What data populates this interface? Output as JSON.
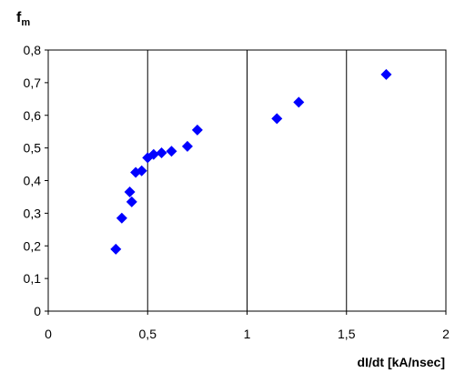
{
  "chart_data": {
    "type": "scatter",
    "title": "",
    "xlabel": "dI/dt [kA/nsec]",
    "ylabel_main": "f",
    "ylabel_sub": "m",
    "xlim": [
      0,
      2
    ],
    "ylim": [
      0,
      0.8
    ],
    "x_ticks": [
      "0",
      "0,5",
      "1",
      "1,5",
      "2"
    ],
    "y_ticks": [
      "0",
      "0,1",
      "0,2",
      "0,3",
      "0,4",
      "0,5",
      "0,6",
      "0,7",
      "0,8"
    ],
    "grid": "vertical-major",
    "marker": "diamond",
    "marker_color": "#0000FF",
    "series": [
      {
        "points": [
          [
            0.34,
            0.19
          ],
          [
            0.37,
            0.285
          ],
          [
            0.41,
            0.365
          ],
          [
            0.42,
            0.335
          ],
          [
            0.44,
            0.425
          ],
          [
            0.47,
            0.43
          ],
          [
            0.5,
            0.47
          ],
          [
            0.53,
            0.48
          ],
          [
            0.57,
            0.485
          ],
          [
            0.62,
            0.49
          ],
          [
            0.7,
            0.505
          ],
          [
            0.75,
            0.555
          ],
          [
            1.15,
            0.59
          ],
          [
            1.26,
            0.64
          ],
          [
            1.7,
            0.725
          ]
        ]
      }
    ]
  }
}
